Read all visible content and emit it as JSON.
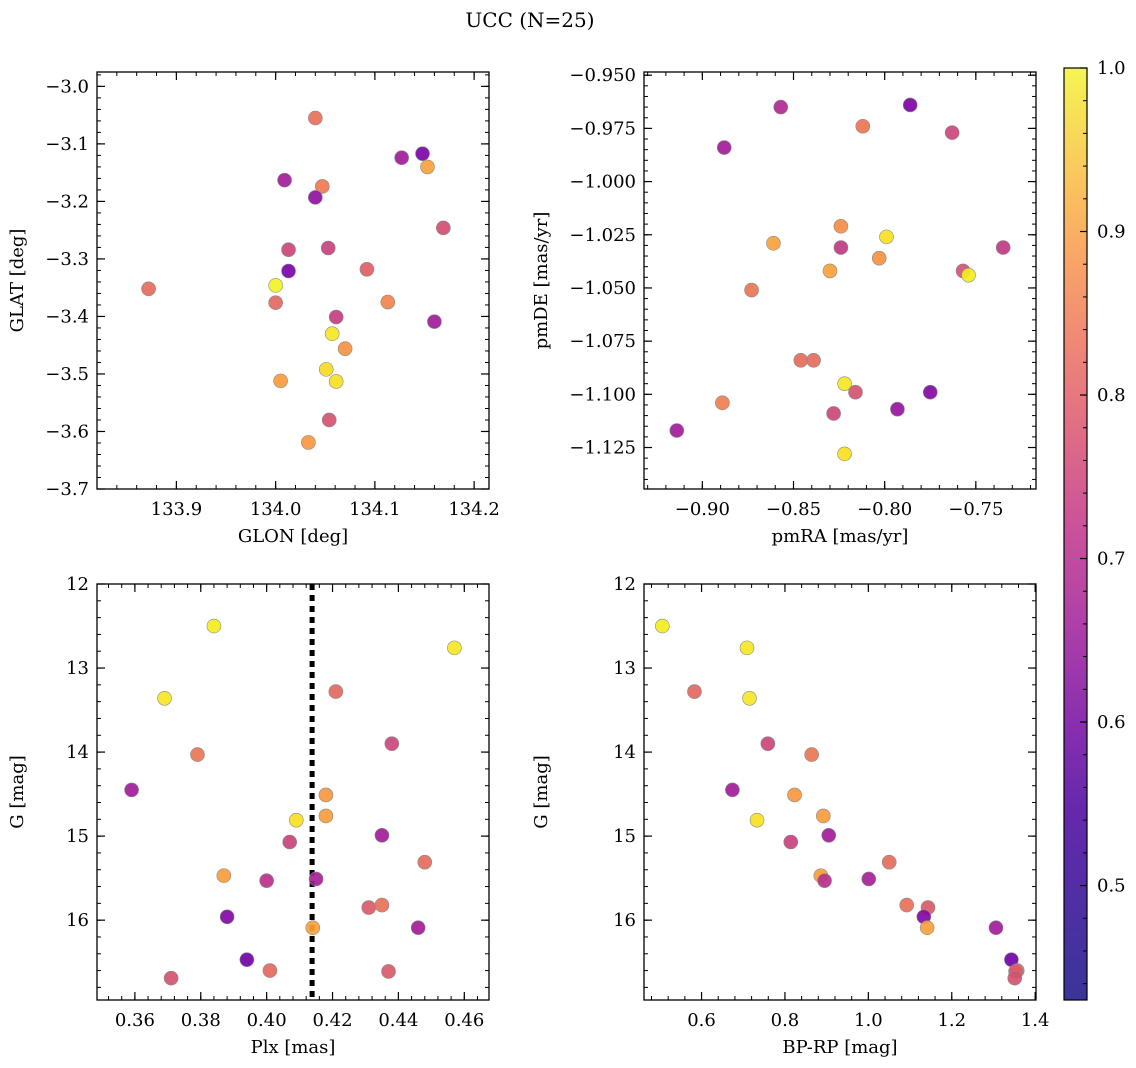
{
  "figure": {
    "title": "UCC (N=25)"
  },
  "colorbar": {
    "range": [
      0.43,
      1.0
    ],
    "colormap": "plasma",
    "ticks": [
      0.5,
      0.6,
      0.7,
      0.8,
      0.9,
      1.0
    ],
    "tick_labels": [
      "0.5",
      "0.6",
      "0.7",
      "0.8",
      "0.9",
      "1.0"
    ]
  },
  "chart_data": [
    {
      "type": "scatter",
      "name": "glon-glat",
      "xlabel": "GLON [deg]",
      "ylabel": "GLAT [deg]",
      "xlim": [
        133.82,
        134.215
      ],
      "ylim": [
        -3.7,
        -2.975
      ],
      "invert_y": false,
      "xticks": [
        133.9,
        134.0,
        134.1,
        134.2
      ],
      "xtick_labels": [
        "133.9",
        "134.0",
        "134.1",
        "134.2"
      ],
      "yticks": [
        -3.0,
        -3.1,
        -3.2,
        -3.3,
        -3.4,
        -3.5,
        -3.6,
        -3.7
      ],
      "ytick_labels": [
        "−3.0",
        "−3.1",
        "−3.2",
        "−3.3",
        "−3.4",
        "−3.5",
        "−3.6",
        "−3.7"
      ],
      "points": [
        {
          "x": 134.04,
          "y": -3.055,
          "c": 0.75
        },
        {
          "x": 134.148,
          "y": -3.117,
          "c": 0.48
        },
        {
          "x": 134.127,
          "y": -3.124,
          "c": 0.55
        },
        {
          "x": 134.153,
          "y": -3.14,
          "c": 0.85
        },
        {
          "x": 134.009,
          "y": -3.163,
          "c": 0.55
        },
        {
          "x": 134.047,
          "y": -3.174,
          "c": 0.77
        },
        {
          "x": 134.04,
          "y": -3.193,
          "c": 0.52
        },
        {
          "x": 134.169,
          "y": -3.246,
          "c": 0.67
        },
        {
          "x": 134.013,
          "y": -3.284,
          "c": 0.65
        },
        {
          "x": 134.053,
          "y": -3.281,
          "c": 0.64
        },
        {
          "x": 134.092,
          "y": -3.318,
          "c": 0.71
        },
        {
          "x": 134.013,
          "y": -3.321,
          "c": 0.47
        },
        {
          "x": 133.872,
          "y": -3.352,
          "c": 0.74
        },
        {
          "x": 134.0,
          "y": -3.346,
          "c": 0.99
        },
        {
          "x": 134.0,
          "y": -3.376,
          "c": 0.73
        },
        {
          "x": 134.113,
          "y": -3.375,
          "c": 0.79
        },
        {
          "x": 134.061,
          "y": -3.401,
          "c": 0.63
        },
        {
          "x": 134.16,
          "y": -3.409,
          "c": 0.55
        },
        {
          "x": 134.057,
          "y": -3.43,
          "c": 0.97
        },
        {
          "x": 134.07,
          "y": -3.456,
          "c": 0.82
        },
        {
          "x": 134.051,
          "y": -3.492,
          "c": 0.95
        },
        {
          "x": 134.061,
          "y": -3.513,
          "c": 0.96
        },
        {
          "x": 134.005,
          "y": -3.512,
          "c": 0.84
        },
        {
          "x": 134.054,
          "y": -3.58,
          "c": 0.68
        },
        {
          "x": 134.033,
          "y": -3.619,
          "c": 0.83
        }
      ]
    },
    {
      "type": "scatter",
      "name": "pmra-pmde",
      "xlabel": "pmRA [mas/yr]",
      "ylabel": "pmDE [mas/yr]",
      "xlim": [
        -0.932,
        -0.717
      ],
      "ylim": [
        -1.1445,
        -0.9485
      ],
      "invert_y": false,
      "xticks": [
        -0.9,
        -0.85,
        -0.8,
        -0.75
      ],
      "xtick_labels": [
        "−0.90",
        "−0.85",
        "−0.80",
        "−0.75"
      ],
      "yticks": [
        -0.95,
        -0.975,
        -1.0,
        -1.025,
        -1.05,
        -1.075,
        -1.1,
        -1.125
      ],
      "ytick_labels": [
        "−0.950",
        "−0.975",
        "−1.000",
        "−1.025",
        "−1.050",
        "−1.075",
        "−1.100",
        "−1.125"
      ],
      "points": [
        {
          "x": -0.857,
          "y": -0.965,
          "c": 0.58
        },
        {
          "x": -0.786,
          "y": -0.964,
          "c": 0.48
        },
        {
          "x": -0.812,
          "y": -0.974,
          "c": 0.76
        },
        {
          "x": -0.763,
          "y": -0.977,
          "c": 0.65
        },
        {
          "x": -0.888,
          "y": -0.984,
          "c": 0.55
        },
        {
          "x": -0.824,
          "y": -1.021,
          "c": 0.81
        },
        {
          "x": -0.861,
          "y": -1.029,
          "c": 0.85
        },
        {
          "x": -0.824,
          "y": -1.031,
          "c": 0.62
        },
        {
          "x": -0.799,
          "y": -1.026,
          "c": 0.96
        },
        {
          "x": -0.735,
          "y": -1.031,
          "c": 0.62
        },
        {
          "x": -0.83,
          "y": -1.042,
          "c": 0.85
        },
        {
          "x": -0.803,
          "y": -1.036,
          "c": 0.82
        },
        {
          "x": -0.757,
          "y": -1.042,
          "c": 0.68
        },
        {
          "x": -0.754,
          "y": -1.044,
          "c": 0.98
        },
        {
          "x": -0.873,
          "y": -1.051,
          "c": 0.76
        },
        {
          "x": -0.846,
          "y": -1.084,
          "c": 0.74
        },
        {
          "x": -0.839,
          "y": -1.084,
          "c": 0.74
        },
        {
          "x": -0.822,
          "y": -1.095,
          "c": 0.97
        },
        {
          "x": -0.816,
          "y": -1.099,
          "c": 0.68
        },
        {
          "x": -0.775,
          "y": -1.099,
          "c": 0.49
        },
        {
          "x": -0.889,
          "y": -1.104,
          "c": 0.78
        },
        {
          "x": -0.793,
          "y": -1.107,
          "c": 0.53
        },
        {
          "x": -0.828,
          "y": -1.109,
          "c": 0.65
        },
        {
          "x": -0.914,
          "y": -1.117,
          "c": 0.55
        },
        {
          "x": -0.822,
          "y": -1.128,
          "c": 0.96
        }
      ]
    },
    {
      "type": "scatter",
      "name": "plx-g",
      "xlabel": "Plx [mas]",
      "ylabel": "G [mag]",
      "xlim": [
        0.3485,
        0.4675
      ],
      "ylim": [
        16.95,
        12.0
      ],
      "invert_y": true,
      "xticks": [
        0.36,
        0.38,
        0.4,
        0.42,
        0.44,
        0.46
      ],
      "xtick_labels": [
        "0.36",
        "0.38",
        "0.40",
        "0.42",
        "0.44",
        "0.46"
      ],
      "yticks": [
        12,
        13,
        14,
        15,
        16
      ],
      "ytick_labels": [
        "12",
        "13",
        "14",
        "15",
        "16"
      ],
      "vline": 0.4138,
      "points": [
        {
          "x": 0.384,
          "y": 12.5,
          "c": 0.98
        },
        {
          "x": 0.457,
          "y": 12.76,
          "c": 0.97
        },
        {
          "x": 0.369,
          "y": 13.36,
          "c": 0.97
        },
        {
          "x": 0.421,
          "y": 13.28,
          "c": 0.73
        },
        {
          "x": 0.379,
          "y": 14.03,
          "c": 0.76
        },
        {
          "x": 0.438,
          "y": 13.9,
          "c": 0.65
        },
        {
          "x": 0.359,
          "y": 14.45,
          "c": 0.55
        },
        {
          "x": 0.418,
          "y": 14.51,
          "c": 0.83
        },
        {
          "x": 0.418,
          "y": 14.76,
          "c": 0.84
        },
        {
          "x": 0.409,
          "y": 14.81,
          "c": 0.96
        },
        {
          "x": 0.407,
          "y": 15.07,
          "c": 0.64
        },
        {
          "x": 0.435,
          "y": 14.99,
          "c": 0.55
        },
        {
          "x": 0.448,
          "y": 15.31,
          "c": 0.74
        },
        {
          "x": 0.387,
          "y": 15.47,
          "c": 0.84
        },
        {
          "x": 0.4,
          "y": 15.53,
          "c": 0.6
        },
        {
          "x": 0.415,
          "y": 15.51,
          "c": 0.56
        },
        {
          "x": 0.431,
          "y": 15.85,
          "c": 0.7
        },
        {
          "x": 0.435,
          "y": 15.82,
          "c": 0.75
        },
        {
          "x": 0.388,
          "y": 15.96,
          "c": 0.49
        },
        {
          "x": 0.446,
          "y": 16.09,
          "c": 0.55
        },
        {
          "x": 0.414,
          "y": 16.09,
          "c": 0.85
        },
        {
          "x": 0.394,
          "y": 16.47,
          "c": 0.46
        },
        {
          "x": 0.401,
          "y": 16.6,
          "c": 0.73
        },
        {
          "x": 0.437,
          "y": 16.61,
          "c": 0.7
        },
        {
          "x": 0.371,
          "y": 16.69,
          "c": 0.68
        }
      ]
    },
    {
      "type": "scatter",
      "name": "bprp-g",
      "xlabel": "BP-RP [mag]",
      "ylabel": "G [mag]",
      "xlim": [
        0.462,
        1.402
      ],
      "ylim": [
        16.95,
        12.0
      ],
      "invert_y": true,
      "xticks": [
        0.6,
        0.8,
        1.0,
        1.2,
        1.4
      ],
      "xtick_labels": [
        "0.6",
        "0.8",
        "1.0",
        "1.2",
        "1.4"
      ],
      "yticks": [
        12,
        13,
        14,
        15,
        16
      ],
      "ytick_labels": [
        "12",
        "13",
        "14",
        "15",
        "16"
      ],
      "points": [
        {
          "x": 0.506,
          "y": 12.5,
          "c": 0.98
        },
        {
          "x": 0.709,
          "y": 12.76,
          "c": 0.97
        },
        {
          "x": 0.583,
          "y": 13.28,
          "c": 0.73
        },
        {
          "x": 0.715,
          "y": 13.36,
          "c": 0.97
        },
        {
          "x": 0.759,
          "y": 13.9,
          "c": 0.65
        },
        {
          "x": 0.864,
          "y": 14.03,
          "c": 0.76
        },
        {
          "x": 0.674,
          "y": 14.45,
          "c": 0.55
        },
        {
          "x": 0.823,
          "y": 14.51,
          "c": 0.83
        },
        {
          "x": 0.733,
          "y": 14.81,
          "c": 0.96
        },
        {
          "x": 0.892,
          "y": 14.76,
          "c": 0.84
        },
        {
          "x": 0.814,
          "y": 15.07,
          "c": 0.64
        },
        {
          "x": 0.905,
          "y": 14.99,
          "c": 0.55
        },
        {
          "x": 1.05,
          "y": 15.31,
          "c": 0.74
        },
        {
          "x": 0.886,
          "y": 15.47,
          "c": 0.84
        },
        {
          "x": 0.895,
          "y": 15.53,
          "c": 0.6
        },
        {
          "x": 1.001,
          "y": 15.51,
          "c": 0.56
        },
        {
          "x": 1.092,
          "y": 15.82,
          "c": 0.75
        },
        {
          "x": 1.143,
          "y": 15.85,
          "c": 0.7
        },
        {
          "x": 1.133,
          "y": 15.96,
          "c": 0.49
        },
        {
          "x": 1.141,
          "y": 16.09,
          "c": 0.85
        },
        {
          "x": 1.306,
          "y": 16.09,
          "c": 0.55
        },
        {
          "x": 1.343,
          "y": 16.47,
          "c": 0.46
        },
        {
          "x": 1.357,
          "y": 16.6,
          "c": 0.73
        },
        {
          "x": 1.353,
          "y": 16.61,
          "c": 0.7
        },
        {
          "x": 1.351,
          "y": 16.69,
          "c": 0.68
        }
      ]
    }
  ]
}
